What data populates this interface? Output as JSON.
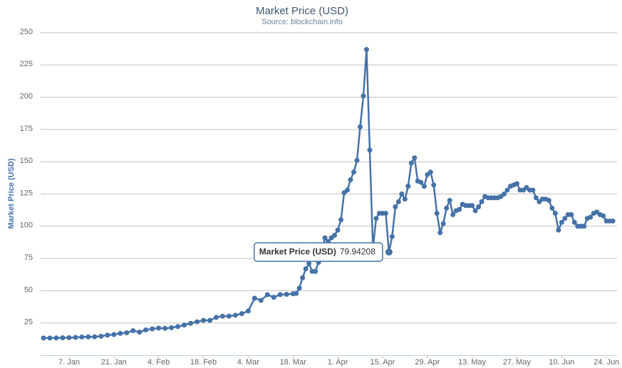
{
  "chart_data": {
    "type": "line",
    "title": "Market Price (USD)",
    "subtitle": "Source: blockchain.info",
    "y_label": "Market Price (USD)",
    "x": [
      -1,
      1,
      3,
      5,
      7,
      9,
      11,
      13,
      15,
      17,
      19,
      21,
      23,
      25,
      27,
      29,
      31,
      33,
      35,
      37,
      39,
      41,
      43,
      45,
      47,
      49,
      51,
      53,
      55,
      57,
      59,
      61,
      63,
      65,
      67,
      69,
      71,
      73,
      75,
      77,
      78,
      79,
      80,
      81,
      82,
      83,
      84,
      85,
      86,
      87,
      88,
      89,
      90,
      91,
      92,
      93,
      94,
      95,
      96,
      97,
      98,
      99,
      100,
      101,
      102,
      103,
      104,
      105,
      106,
      107,
      108,
      109,
      110,
      111,
      112,
      113,
      114,
      115,
      116,
      117,
      118,
      119,
      120,
      121,
      122,
      123,
      124,
      125,
      126,
      127,
      128,
      129,
      130,
      131,
      132,
      133,
      134,
      135,
      136,
      137,
      138,
      139,
      140,
      141,
      142,
      143,
      144,
      145,
      146,
      147,
      148,
      149,
      150,
      151,
      152,
      153,
      154,
      155,
      156,
      157,
      158,
      159,
      160,
      161,
      162,
      163,
      164,
      165,
      166,
      167,
      168,
      169,
      170,
      171,
      172,
      173,
      174,
      175,
      176,
      177
    ],
    "series": [
      {
        "name": "Market Price (USD)",
        "color": "#4572a7",
        "values": [
          13.3,
          13.3,
          13.4,
          13.5,
          13.6,
          13.8,
          14.1,
          14.2,
          14.3,
          14.7,
          15.6,
          16.0,
          16.9,
          17.4,
          19.0,
          17.9,
          19.6,
          20.4,
          21.0,
          20.8,
          21.3,
          22.2,
          23.4,
          24.7,
          25.9,
          27.0,
          27.0,
          29.3,
          30.2,
          30.3,
          31.0,
          32.2,
          34.3,
          44.2,
          42.5,
          46.9,
          44.9,
          47.0,
          47.2,
          47.6,
          47.9,
          52,
          60,
          67,
          71,
          65,
          65,
          72,
          79,
          91,
          88,
          91,
          93,
          97,
          105,
          126,
          128,
          136,
          142,
          151,
          177,
          201,
          237,
          159,
          83,
          106,
          110,
          110,
          110,
          79.94208,
          92,
          115,
          119,
          125,
          121,
          131,
          149,
          153,
          135,
          134,
          131,
          140,
          142,
          132,
          110,
          95,
          102,
          114,
          120,
          109,
          112,
          113,
          117,
          116,
          116,
          116,
          112,
          115,
          119,
          123,
          122,
          122,
          122,
          122,
          123,
          125,
          128,
          131,
          132,
          133,
          128,
          128,
          130,
          128,
          128,
          122,
          119,
          121,
          121,
          120,
          114,
          110,
          97,
          103,
          106,
          109,
          109,
          103,
          100,
          100,
          100,
          106,
          107,
          110,
          111,
          109,
          108,
          104,
          104,
          104
        ]
      }
    ],
    "tooltip_index": 69,
    "xlim": [
      -1.9,
      178.3
    ],
    "xticks": [
      {
        "value": 7,
        "label": "7. Jan"
      },
      {
        "value": 21,
        "label": "21. Jan"
      },
      {
        "value": 35,
        "label": "4. Feb"
      },
      {
        "value": 49,
        "label": "18. Feb"
      },
      {
        "value": 63,
        "label": "4. Mar"
      },
      {
        "value": 77,
        "label": "18. Mar"
      },
      {
        "value": 91,
        "label": "1. Apr"
      },
      {
        "value": 105,
        "label": "15. Apr"
      },
      {
        "value": 119,
        "label": "29. Apr"
      },
      {
        "value": 133,
        "label": "13. May"
      },
      {
        "value": 147,
        "label": "27. May"
      },
      {
        "value": 161,
        "label": "10. Jun"
      },
      {
        "value": 175,
        "label": "24. Jun"
      }
    ],
    "ylim": [
      0,
      250
    ],
    "yticks": [
      25,
      50,
      75,
      100,
      125,
      150,
      175,
      200,
      225,
      250
    ],
    "grid": true
  }
}
